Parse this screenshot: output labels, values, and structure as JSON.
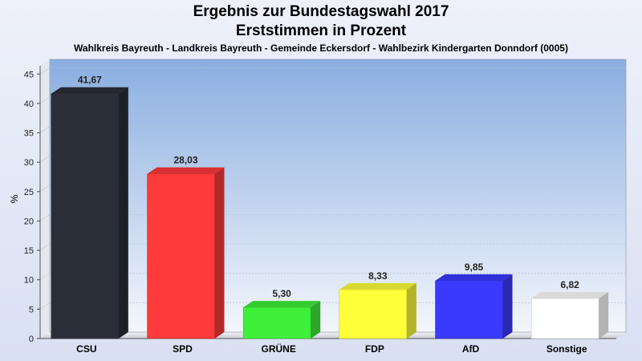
{
  "chart_data": {
    "type": "bar",
    "title": "Ergebnis zur Bundestagswahl 2017",
    "subtitle": "Erststimmen in Prozent",
    "caption": "Wahlkreis Bayreuth - Landkreis Bayreuth - Gemeinde Eckersdorf - Wahlbezirk Kindergarten Donndorf (0005)",
    "ylabel": "%",
    "xlabel": "",
    "ylim": [
      0,
      47.5
    ],
    "yticks": [
      "0",
      "5",
      "10",
      "15",
      "20",
      "25",
      "30",
      "35",
      "40",
      "45"
    ],
    "categories": [
      "CSU",
      "SPD",
      "GRÜNE",
      "FDP",
      "AfD",
      "Sonstige"
    ],
    "values": [
      41.67,
      28.03,
      5.3,
      8.33,
      9.85,
      6.82
    ],
    "value_labels": [
      "41,67",
      "28,03",
      "5,30",
      "8,33",
      "9,85",
      "6,82"
    ],
    "colors": [
      "#2a2e38",
      "#ff3a3a",
      "#3ef03a",
      "#ffff3a",
      "#3a3aff",
      "#ffffff"
    ],
    "grid": true,
    "legend": "none"
  }
}
